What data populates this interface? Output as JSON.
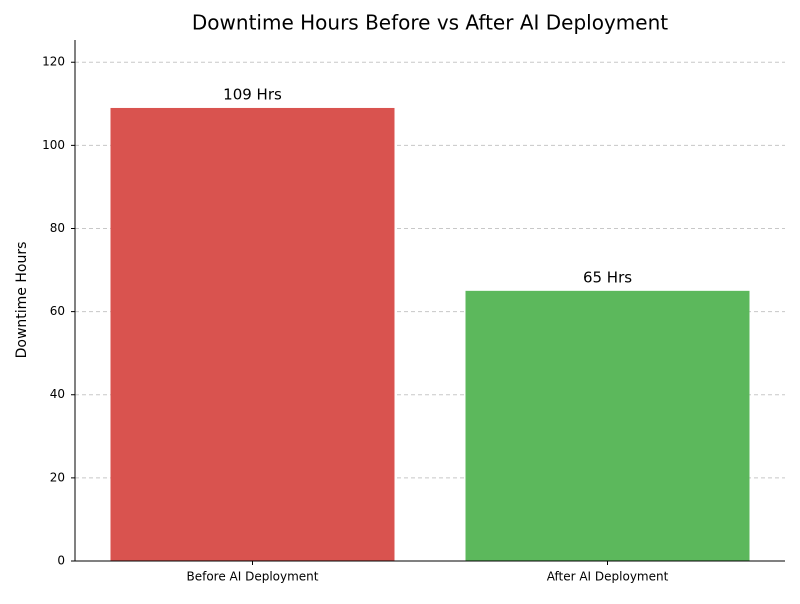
{
  "chart_data": {
    "type": "bar",
    "title": "Downtime Hours Before vs After AI Deployment",
    "ylabel": "Downtime Hours",
    "categories": [
      "Before AI Deployment",
      "After AI Deployment"
    ],
    "values": [
      109,
      65
    ],
    "value_labels": [
      "109 Hrs",
      "65 Hrs"
    ],
    "colors": [
      "#d9534f",
      "#5cb85c"
    ],
    "ylim": [
      0,
      125.35
    ],
    "yticks": [
      0,
      20,
      40,
      60,
      80,
      100,
      120
    ],
    "grid": true
  }
}
